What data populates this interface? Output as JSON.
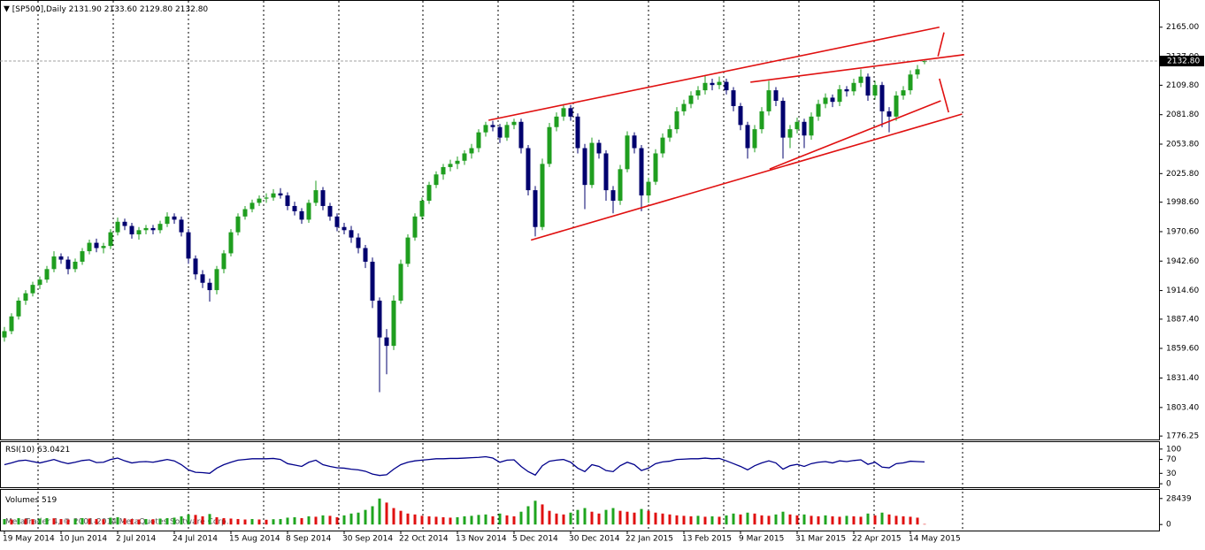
{
  "chart_data": {
    "type": "candlestick",
    "title": "[SP500],Daily",
    "last_candle_labels": [
      "2131.90",
      "2133.60",
      "2129.80",
      "2132.80"
    ],
    "bull_color": "#1f9e1f",
    "bear_color": "#00006e",
    "ylim": [
      1773,
      2190
    ],
    "yticks": [
      {
        "value": 2165,
        "label": "2165.00"
      },
      {
        "value": 2137,
        "label": "2137.00"
      },
      {
        "value": 2109.8,
        "label": "2109.80"
      },
      {
        "value": 2081.8,
        "label": "2081.80"
      },
      {
        "value": 2053.8,
        "label": "2053.80"
      },
      {
        "value": 2025.8,
        "label": "2025.80"
      },
      {
        "value": 1998.6,
        "label": "1998.60"
      },
      {
        "value": 1970.6,
        "label": "1970.60"
      },
      {
        "value": 1942.6,
        "label": "1942.60"
      },
      {
        "value": 1914.6,
        "label": "1914.60"
      },
      {
        "value": 1887.4,
        "label": "1887.40"
      },
      {
        "value": 1859.6,
        "label": "1859.60"
      },
      {
        "value": 1831.4,
        "label": "1831.40"
      },
      {
        "value": 1803.4,
        "label": "1803.40"
      },
      {
        "value": 1776.25,
        "label": "1776.25"
      }
    ],
    "categories": [
      "19 May 2014",
      null,
      null,
      null,
      null,
      null,
      null,
      null,
      "10 Jun 2014",
      null,
      null,
      null,
      null,
      null,
      null,
      null,
      "2 Jul 2014",
      null,
      null,
      null,
      null,
      null,
      null,
      null,
      "24 Jul 2014",
      null,
      null,
      null,
      null,
      null,
      null,
      null,
      "15 Aug 2014",
      null,
      null,
      null,
      null,
      null,
      null,
      null,
      "8 Sep 2014",
      null,
      null,
      null,
      null,
      null,
      null,
      null,
      "30 Sep 2014",
      null,
      null,
      null,
      null,
      null,
      null,
      null,
      "22 Oct 2014",
      null,
      null,
      null,
      null,
      null,
      null,
      null,
      "13 Nov 2014",
      null,
      null,
      null,
      null,
      null,
      null,
      null,
      "5 Dec 2014",
      null,
      null,
      null,
      null,
      null,
      null,
      null,
      "30 Dec 2014",
      null,
      null,
      null,
      null,
      null,
      null,
      null,
      "22 Jan 2015",
      null,
      null,
      null,
      null,
      null,
      null,
      null,
      "13 Feb 2015",
      null,
      null,
      null,
      null,
      null,
      null,
      null,
      "9 Mar 2015",
      null,
      null,
      null,
      null,
      null,
      null,
      null,
      "31 Mar 2015",
      null,
      null,
      null,
      null,
      null,
      null,
      null,
      "22 Apr 2015",
      null,
      null,
      null,
      null,
      null,
      null,
      null,
      "14 May 2015",
      null,
      null
    ],
    "ohlc": [
      [
        1870,
        1880,
        1866,
        1876
      ],
      [
        1876,
        1893,
        1873,
        1890
      ],
      [
        1890,
        1908,
        1887,
        1905
      ],
      [
        1905,
        1915,
        1901,
        1912
      ],
      [
        1912,
        1923,
        1909,
        1920
      ],
      [
        1920,
        1928,
        1916,
        1925
      ],
      [
        1925,
        1938,
        1922,
        1935
      ],
      [
        1935,
        1952,
        1932,
        1947
      ],
      [
        1947,
        1950,
        1940,
        1944
      ],
      [
        1944,
        1947,
        1930,
        1935
      ],
      [
        1935,
        1945,
        1932,
        1942
      ],
      [
        1942,
        1955,
        1939,
        1952
      ],
      [
        1952,
        1963,
        1949,
        1960
      ],
      [
        1960,
        1964,
        1951,
        1955
      ],
      [
        1955,
        1960,
        1950,
        1957
      ],
      [
        1957,
        1973,
        1954,
        1970
      ],
      [
        1970,
        1984,
        1967,
        1980
      ],
      [
        1980,
        1983,
        1972,
        1976
      ],
      [
        1976,
        1979,
        1964,
        1968
      ],
      [
        1968,
        1975,
        1963,
        1972
      ],
      [
        1972,
        1977,
        1968,
        1974
      ],
      [
        1974,
        1977,
        1968,
        1972
      ],
      [
        1972,
        1981,
        1969,
        1978
      ],
      [
        1978,
        1989,
        1975,
        1985
      ],
      [
        1985,
        1988,
        1978,
        1982
      ],
      [
        1982,
        1985,
        1966,
        1970
      ],
      [
        1970,
        1973,
        1940,
        1945
      ],
      [
        1945,
        1948,
        1925,
        1930
      ],
      [
        1930,
        1934,
        1917,
        1922
      ],
      [
        1922,
        1926,
        1904,
        1915
      ],
      [
        1915,
        1938,
        1911,
        1935
      ],
      [
        1935,
        1953,
        1931,
        1950
      ],
      [
        1950,
        1973,
        1947,
        1970
      ],
      [
        1970,
        1988,
        1967,
        1985
      ],
      [
        1985,
        1995,
        1982,
        1992
      ],
      [
        1992,
        2001,
        1989,
        1998
      ],
      [
        1998,
        2005,
        1995,
        2002
      ],
      [
        2002,
        2007,
        1998,
        2003
      ],
      [
        2003,
        2011,
        2000,
        2007
      ],
      [
        2007,
        2012,
        2002,
        2005
      ],
      [
        2005,
        2008,
        1991,
        1995
      ],
      [
        1995,
        1999,
        1986,
        1990
      ],
      [
        1990,
        1993,
        1978,
        1982
      ],
      [
        1982,
        2001,
        1979,
        1998
      ],
      [
        1998,
        2019,
        1995,
        2010
      ],
      [
        2010,
        2013,
        1991,
        1995
      ],
      [
        1995,
        1998,
        1981,
        1985
      ],
      [
        1985,
        1988,
        1971,
        1975
      ],
      [
        1975,
        1979,
        1968,
        1972
      ],
      [
        1972,
        1976,
        1960,
        1965
      ],
      [
        1965,
        1969,
        1950,
        1955
      ],
      [
        1955,
        1958,
        1936,
        1942
      ],
      [
        1942,
        1946,
        1898,
        1905
      ],
      [
        1905,
        1908,
        1818,
        1870
      ],
      [
        1870,
        1878,
        1835,
        1862
      ],
      [
        1862,
        1910,
        1858,
        1905
      ],
      [
        1905,
        1944,
        1902,
        1940
      ],
      [
        1940,
        1968,
        1937,
        1965
      ],
      [
        1965,
        1988,
        1962,
        1985
      ],
      [
        1985,
        2003,
        1982,
        2000
      ],
      [
        2000,
        2018,
        1997,
        2015
      ],
      [
        2015,
        2028,
        2012,
        2025
      ],
      [
        2025,
        2035,
        2020,
        2032
      ],
      [
        2032,
        2039,
        2028,
        2035
      ],
      [
        2035,
        2042,
        2030,
        2038
      ],
      [
        2038,
        2048,
        2034,
        2045
      ],
      [
        2045,
        2054,
        2040,
        2050
      ],
      [
        2050,
        2068,
        2046,
        2065
      ],
      [
        2065,
        2075,
        2061,
        2072
      ],
      [
        2072,
        2076,
        2066,
        2070
      ],
      [
        2070,
        2073,
        2055,
        2060
      ],
      [
        2060,
        2075,
        2057,
        2072
      ],
      [
        2072,
        2078,
        2068,
        2075
      ],
      [
        2075,
        2078,
        2045,
        2050
      ],
      [
        2050,
        2053,
        2005,
        2010
      ],
      [
        2010,
        2014,
        1966,
        1975
      ],
      [
        1975,
        2040,
        1972,
        2035
      ],
      [
        2035,
        2074,
        2032,
        2070
      ],
      [
        2070,
        2084,
        2066,
        2080
      ],
      [
        2080,
        2092,
        2076,
        2088
      ],
      [
        2088,
        2091,
        2076,
        2080
      ],
      [
        2080,
        2083,
        2045,
        2050
      ],
      [
        2050,
        2054,
        1992,
        2015
      ],
      [
        2015,
        2060,
        2012,
        2055
      ],
      [
        2055,
        2058,
        2040,
        2045
      ],
      [
        2045,
        2048,
        2000,
        2010
      ],
      [
        2010,
        2014,
        1988,
        2000
      ],
      [
        2000,
        2034,
        1996,
        2030
      ],
      [
        2030,
        2066,
        2027,
        2062
      ],
      [
        2062,
        2065,
        2045,
        2050
      ],
      [
        2050,
        2053,
        1990,
        2005
      ],
      [
        2005,
        2022,
        1998,
        2018
      ],
      [
        2018,
        2049,
        2015,
        2045
      ],
      [
        2045,
        2064,
        2041,
        2060
      ],
      [
        2060,
        2072,
        2056,
        2068
      ],
      [
        2068,
        2089,
        2064,
        2085
      ],
      [
        2085,
        2096,
        2081,
        2092
      ],
      [
        2092,
        2104,
        2088,
        2100
      ],
      [
        2100,
        2109,
        2096,
        2105
      ],
      [
        2105,
        2119,
        2101,
        2112
      ],
      [
        2112,
        2116,
        2105,
        2110
      ],
      [
        2110,
        2118,
        2106,
        2113
      ],
      [
        2113,
        2116,
        2101,
        2105
      ],
      [
        2105,
        2108,
        2085,
        2090
      ],
      [
        2090,
        2093,
        2067,
        2072
      ],
      [
        2072,
        2075,
        2040,
        2050
      ],
      [
        2050,
        2072,
        2046,
        2068
      ],
      [
        2068,
        2089,
        2064,
        2085
      ],
      [
        2085,
        2114,
        2081,
        2105
      ],
      [
        2105,
        2108,
        2090,
        2095
      ],
      [
        2095,
        2098,
        2040,
        2060
      ],
      [
        2060,
        2072,
        2050,
        2068
      ],
      [
        2068,
        2079,
        2064,
        2075
      ],
      [
        2075,
        2078,
        2050,
        2062
      ],
      [
        2062,
        2084,
        2058,
        2080
      ],
      [
        2080,
        2096,
        2076,
        2092
      ],
      [
        2092,
        2102,
        2088,
        2098
      ],
      [
        2098,
        2101,
        2089,
        2094
      ],
      [
        2094,
        2110,
        2090,
        2106
      ],
      [
        2106,
        2109,
        2099,
        2104
      ],
      [
        2104,
        2116,
        2100,
        2112
      ],
      [
        2112,
        2125,
        2108,
        2118
      ],
      [
        2118,
        2121,
        2095,
        2100
      ],
      [
        2100,
        2114,
        2096,
        2110
      ],
      [
        2110,
        2113,
        2070,
        2085
      ],
      [
        2085,
        2089,
        2065,
        2080
      ],
      [
        2080,
        2104,
        2076,
        2100
      ],
      [
        2100,
        2109,
        2096,
        2105
      ],
      [
        2105,
        2124,
        2101,
        2120
      ],
      [
        2120,
        2129,
        2116,
        2125
      ],
      [
        2131.9,
        2133.6,
        2129.8,
        2132.8
      ]
    ],
    "trendlines": [
      {
        "from": [
          68.4,
          2076.5
        ],
        "to": [
          132.1,
          2165
        ]
      },
      {
        "from": [
          74.4,
          1962.6
        ],
        "to": [
          135.3,
          2082.4
        ]
      },
      {
        "from": [
          105.4,
          2112.7
        ],
        "to": [
          135.6,
          2138.9
        ]
      },
      {
        "from": [
          108.1,
          2030.1
        ],
        "to": [
          132.3,
          2095
        ]
      },
      {
        "from": [
          132.75,
          2160
        ],
        "to": [
          131.9,
          2137.3
        ]
      },
      {
        "from": [
          132.1,
          2116
        ],
        "to": [
          133.4,
          2084
        ]
      }
    ],
    "trendline_color": "#e01010",
    "rsi": {
      "name": "RSI(10)",
      "color": "#00008b",
      "ylim": [
        -10,
        120
      ],
      "yticks": [
        100,
        70,
        30,
        0
      ],
      "values": [
        55,
        60,
        66,
        68,
        64,
        60,
        65,
        70,
        63,
        58,
        62,
        67,
        69,
        61,
        62,
        70,
        74,
        66,
        60,
        63,
        64,
        62,
        66,
        70,
        66,
        55,
        40,
        33,
        32,
        30,
        45,
        55,
        62,
        68,
        70,
        72,
        72,
        72,
        73,
        70,
        58,
        54,
        50,
        62,
        68,
        55,
        50,
        46,
        45,
        42,
        40,
        36,
        28,
        24,
        26,
        42,
        55,
        62,
        66,
        68,
        70,
        72,
        72,
        73,
        73,
        74,
        75,
        76,
        78,
        74,
        62,
        68,
        69,
        50,
        35,
        25,
        52,
        65,
        68,
        70,
        62,
        45,
        35,
        55,
        50,
        38,
        35,
        52,
        62,
        55,
        38,
        45,
        58,
        63,
        65,
        70,
        71,
        72,
        72,
        74,
        72,
        73,
        66,
        58,
        50,
        40,
        52,
        60,
        66,
        60,
        42,
        52,
        56,
        50,
        58,
        62,
        64,
        60,
        66,
        64,
        67,
        69,
        56,
        62,
        48,
        46,
        58,
        60,
        65,
        64,
        63.0421
      ]
    },
    "volume": {
      "name": "Volumes",
      "up_color": "#1fa51f",
      "down_color": "#e01010",
      "ylim": [
        -6600,
        37900
      ],
      "yticks": [
        28439,
        0
      ],
      "values": [
        6000,
        5500,
        7000,
        6200,
        5800,
        6500,
        7000,
        6800,
        6000,
        5500,
        6200,
        7000,
        6500,
        6000,
        5800,
        7500,
        8000,
        6500,
        6000,
        5500,
        6000,
        5800,
        6500,
        7000,
        7500,
        9000,
        11000,
        10500,
        9000,
        11500,
        8000,
        7000,
        6500,
        6000,
        5500,
        6000,
        5500,
        5200,
        5800,
        6000,
        7500,
        8000,
        7000,
        9000,
        8500,
        10000,
        9500,
        8000,
        10000,
        12000,
        13000,
        16000,
        20000,
        28439,
        24000,
        18000,
        15000,
        12000,
        11000,
        9500,
        9000,
        8500,
        8000,
        7500,
        8000,
        9000,
        9500,
        10500,
        11000,
        9000,
        12000,
        10000,
        9000,
        14000,
        20000,
        26000,
        22000,
        15000,
        12000,
        11000,
        13000,
        16000,
        18000,
        14000,
        12000,
        16000,
        18000,
        15000,
        14000,
        13000,
        17000,
        15000,
        13000,
        12000,
        11000,
        10000,
        9500,
        9000,
        9500,
        8500,
        9000,
        8500,
        10000,
        12000,
        11000,
        13000,
        12000,
        10000,
        9500,
        11000,
        14000,
        11000,
        10000,
        11000,
        9500,
        9000,
        10000,
        9000,
        8500,
        9500,
        9000,
        8500,
        12000,
        10000,
        13000,
        11000,
        9500,
        9000,
        8500,
        7500,
        519
      ]
    },
    "watermark": "MetaTrader 4, © 2001-2014 MetaQuotes Software Corp."
  }
}
